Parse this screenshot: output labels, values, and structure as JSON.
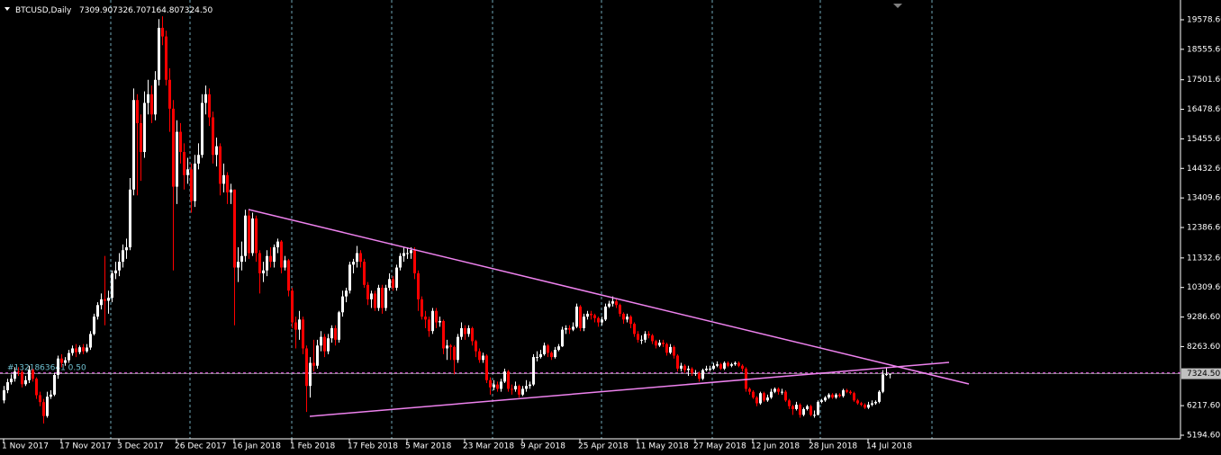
{
  "header": {
    "symbol": "BTCUSD,Daily",
    "ohlc": [
      "7309.90",
      "7326.70",
      "7164.80",
      "7324.50"
    ]
  },
  "chart_data": {
    "type": "candlestick",
    "categories": [
      "1 Nov 2017",
      null,
      null,
      null,
      null,
      null,
      null,
      null,
      null,
      null,
      null,
      null,
      null,
      null,
      null,
      null,
      "17 Nov 2017",
      null,
      null,
      null,
      null,
      null,
      null,
      null,
      null,
      null,
      null,
      null,
      null,
      null,
      null,
      null,
      "3 Dec 2017",
      null,
      null,
      null,
      null,
      null,
      null,
      null,
      null,
      null,
      null,
      null,
      null,
      null,
      null,
      null,
      "26 Dec 2017",
      null,
      null,
      null,
      null,
      null,
      null,
      null,
      null,
      null,
      null,
      null,
      null,
      null,
      null,
      null,
      "16 Jan 2018",
      null,
      null,
      null,
      null,
      null,
      null,
      null,
      null,
      null,
      null,
      null,
      null,
      null,
      null,
      null,
      "1 Feb 2018",
      null,
      null,
      null,
      null,
      null,
      null,
      null,
      null,
      null,
      null,
      null,
      null,
      null,
      null,
      null,
      "17 Feb 2018",
      null,
      null,
      null,
      null,
      null,
      null,
      null,
      null,
      null,
      null,
      null,
      null,
      null,
      null,
      null,
      "5 Mar 2018",
      null,
      null,
      null,
      null,
      null,
      null,
      null,
      null,
      null,
      null,
      null,
      null,
      null,
      null,
      null,
      "23 Mar 2018",
      null,
      null,
      null,
      null,
      null,
      null,
      null,
      null,
      null,
      null,
      null,
      null,
      null,
      null,
      null,
      "9 Apr 2018",
      null,
      null,
      null,
      null,
      null,
      null,
      null,
      null,
      null,
      null,
      null,
      null,
      null,
      null,
      null,
      "25 Apr 2018",
      null,
      null,
      null,
      null,
      null,
      null,
      null,
      null,
      null,
      null,
      null,
      null,
      null,
      null,
      null,
      "11 May 2018",
      null,
      null,
      null,
      null,
      null,
      null,
      null,
      null,
      null,
      null,
      null,
      null,
      null,
      null,
      null,
      "27 May 2018",
      null,
      null,
      null,
      null,
      null,
      null,
      null,
      null,
      null,
      null,
      null,
      null,
      null,
      null,
      null,
      "12 Jun 2018",
      null,
      null,
      null,
      null,
      null,
      null,
      null,
      null,
      null,
      null,
      null,
      null,
      null,
      null,
      null,
      "28 Jun 2018",
      null,
      null,
      null,
      null,
      null,
      null,
      null,
      null,
      null,
      null,
      null,
      null,
      null,
      null,
      null,
      "14 Jul 2018",
      null,
      null,
      null,
      null,
      null,
      null
    ],
    "open": [
      6400,
      6750,
      7030,
      7150,
      7400,
      7380,
      6960,
      7100,
      7450,
      7150,
      6580,
      6340,
      5860,
      6530,
      6600,
      7280,
      7850,
      7700,
      7790,
      8040,
      8200,
      8070,
      8240,
      8100,
      8230,
      8700,
      9300,
      9700,
      9900,
      9850,
      9950,
      10800,
      10900,
      11200,
      11600,
      11700,
      13700,
      16800,
      16000,
      15000,
      16700,
      17000,
      16300,
      17500,
      19300,
      19000,
      17500,
      16500,
      13800,
      15700,
      15000,
      14200,
      14400,
      13300,
      14600,
      14900,
      16700,
      17000,
      16200,
      14900,
      15200,
      13900,
      14200,
      13600,
      13700,
      11000,
      11200,
      11400,
      12800,
      11500,
      12700,
      11500,
      10800,
      10900,
      11400,
      11200,
      11700,
      11900,
      11000,
      11250,
      10200,
      9100,
      8850,
      9200,
      8200,
      6900,
      7700,
      7600,
      8300,
      8600,
      8100,
      8550,
      8900,
      8500,
      9450,
      10000,
      10200,
      11100,
      11200,
      11500,
      11200,
      10400,
      9900,
      10100,
      9600,
      10300,
      9600,
      10300,
      10600,
      10300,
      11000,
      11400,
      11500,
      11500,
      11600,
      10800,
      9900,
      9300,
      9200,
      8800,
      9500,
      9100,
      9150,
      8200,
      8300,
      8250,
      7800,
      8600,
      8900,
      8700,
      8900,
      8450,
      8100,
      7800,
      7950,
      7100,
      6850,
      6950,
      6800,
      7050,
      7400,
      6800,
      6780,
      6900,
      6600,
      6800,
      6900,
      6950,
      7900,
      7900,
      8000,
      8300,
      8050,
      7900,
      8150,
      8270,
      8850,
      8900,
      8850,
      8950,
      9650,
      8900,
      9300,
      9400,
      9350,
      9250,
      9100,
      9200,
      9650,
      9750,
      9830,
      9700,
      9400,
      9200,
      9300,
      9050,
      8700,
      8500,
      8500,
      8700,
      8650,
      8450,
      8300,
      8400,
      8350,
      8050,
      8250,
      7950,
      7500,
      7600,
      7450,
      7500,
      7350,
      7350,
      7150,
      7450,
      7500,
      7500,
      7600,
      7650,
      7500,
      7700,
      7600,
      7650,
      7700,
      7600,
      7500,
      6800,
      6700,
      6500,
      6300,
      6650,
      6400,
      6500,
      6700,
      6800,
      6700,
      6700,
      6400,
      6200,
      6100,
      6250,
      5900,
      6100,
      6200,
      5900,
      5900,
      6350,
      6400,
      6500,
      6600,
      6500,
      6600,
      6550,
      6750,
      6700,
      6650,
      6400,
      6300,
      6250,
      6150,
      6250,
      6300,
      6350,
      6700,
      7300,
      7309.9
    ],
    "high": [
      6900,
      7150,
      7300,
      7550,
      7550,
      7450,
      7250,
      7600,
      7500,
      7200,
      6700,
      6450,
      6700,
      6750,
      7350,
      7950,
      8000,
      7900,
      8150,
      8300,
      8350,
      8300,
      8350,
      8350,
      8800,
      9400,
      9800,
      10100,
      11400,
      10200,
      10900,
      11200,
      11500,
      11800,
      12000,
      14100,
      17200,
      17000,
      16300,
      17100,
      17500,
      17300,
      17800,
      19600,
      19700,
      19200,
      17900,
      16800,
      16100,
      16000,
      15300,
      14800,
      14600,
      14900,
      15300,
      17000,
      17300,
      17200,
      16400,
      15500,
      15300,
      14600,
      14300,
      13900,
      13700,
      11700,
      11900,
      13000,
      13000,
      12900,
      12800,
      11600,
      11200,
      11600,
      11700,
      11800,
      12000,
      11950,
      11400,
      11300,
      10300,
      9300,
      9500,
      9300,
      8300,
      7900,
      8500,
      8500,
      8800,
      8700,
      8700,
      9000,
      9000,
      9500,
      10200,
      10300,
      11200,
      11300,
      11750,
      11600,
      11300,
      10500,
      10200,
      10200,
      10400,
      10400,
      10400,
      10800,
      10700,
      11100,
      11500,
      11700,
      11700,
      11700,
      11700,
      10900,
      10000,
      9500,
      9300,
      9600,
      9600,
      9300,
      9200,
      8500,
      8350,
      8300,
      8700,
      9100,
      9000,
      9000,
      8950,
      8500,
      8200,
      8050,
      8000,
      7200,
      7100,
      7050,
      7150,
      7500,
      7450,
      6950,
      7050,
      6950,
      6900,
      7100,
      7050,
      8000,
      8100,
      8150,
      8400,
      8350,
      8100,
      8250,
      8350,
      8950,
      9000,
      9000,
      9100,
      9750,
      9700,
      9400,
      9500,
      9500,
      9400,
      9300,
      9300,
      9750,
      9850,
      10000,
      9900,
      9750,
      9450,
      9400,
      9350,
      9100,
      8800,
      8650,
      8800,
      8800,
      8700,
      8500,
      8500,
      8500,
      8400,
      8350,
      8300,
      8000,
      7700,
      7650,
      7600,
      7550,
      7450,
      7400,
      7500,
      7600,
      7600,
      7700,
      7750,
      7700,
      7750,
      7750,
      7700,
      7750,
      7750,
      7650,
      7550,
      6850,
      6750,
      6550,
      6700,
      6700,
      6600,
      6800,
      6850,
      6850,
      6800,
      6750,
      6450,
      6250,
      6350,
      6300,
      6150,
      6250,
      6250,
      6050,
      6400,
      6450,
      6550,
      6650,
      6650,
      6650,
      6650,
      6800,
      6800,
      6750,
      6700,
      6450,
      6350,
      6300,
      6350,
      6400,
      6400,
      6750,
      7450,
      7550,
      7326.7
    ],
    "low": [
      6300,
      6650,
      6950,
      7050,
      7250,
      6850,
      6900,
      7000,
      7050,
      6450,
      6200,
      5600,
      5800,
      6450,
      6550,
      7150,
      7550,
      7600,
      7700,
      7950,
      7900,
      8000,
      8000,
      8050,
      8150,
      8650,
      9200,
      9550,
      9000,
      9400,
      9800,
      10600,
      10700,
      11000,
      11300,
      11600,
      13500,
      13500,
      14000,
      14800,
      16300,
      16000,
      16100,
      17300,
      18700,
      17300,
      15700,
      10900,
      13200,
      14600,
      13700,
      13900,
      12900,
      13100,
      14400,
      14800,
      16300,
      15900,
      14600,
      14500,
      13500,
      13600,
      13200,
      13200,
      9000,
      10500,
      10900,
      11200,
      11300,
      11400,
      11200,
      10100,
      10500,
      10700,
      11000,
      11000,
      11500,
      10800,
      10900,
      10000,
      8900,
      8200,
      8500,
      8000,
      6000,
      6500,
      7400,
      7500,
      8100,
      7900,
      8000,
      8400,
      8300,
      8400,
      9300,
      9800,
      10100,
      10800,
      11000,
      11000,
      10300,
      9700,
      9600,
      9500,
      9500,
      9400,
      9500,
      10200,
      10200,
      10200,
      10900,
      11200,
      11300,
      11300,
      10600,
      9500,
      9200,
      8900,
      8600,
      8700,
      8900,
      8950,
      8000,
      7800,
      7800,
      7300,
      7700,
      8500,
      8500,
      8600,
      8300,
      7900,
      7700,
      7700,
      7000,
      6600,
      6750,
      6700,
      6700,
      7000,
      6700,
      6600,
      6700,
      6500,
      6550,
      6700,
      6800,
      6900,
      7750,
      7850,
      7950,
      7900,
      7800,
      7850,
      8100,
      8250,
      8700,
      8700,
      8800,
      8900,
      8800,
      8800,
      9200,
      9200,
      9100,
      8950,
      9000,
      9150,
      9600,
      9650,
      9600,
      9300,
      9050,
      9100,
      8900,
      8600,
      8400,
      8350,
      8400,
      8550,
      8350,
      8200,
      8250,
      8250,
      7950,
      8000,
      7850,
      7400,
      7400,
      7350,
      7250,
      7250,
      7250,
      7050,
      7100,
      7400,
      7400,
      7450,
      7550,
      7450,
      7450,
      7550,
      7550,
      7600,
      7550,
      7400,
      6700,
      6600,
      6450,
      6200,
      6250,
      6350,
      6350,
      6450,
      6650,
      6600,
      6600,
      6350,
      6100,
      5900,
      6050,
      5800,
      5850,
      6050,
      5850,
      5800,
      5880,
      6300,
      6350,
      6450,
      6450,
      6450,
      6500,
      6500,
      6650,
      6600,
      6350,
      6250,
      6200,
      6100,
      6100,
      6200,
      6250,
      6300,
      6650,
      7250,
      7164.8
    ],
    "close": [
      6750,
      7030,
      7150,
      7400,
      7380,
      6960,
      7100,
      7450,
      7150,
      6580,
      6340,
      5860,
      6530,
      6600,
      7280,
      7850,
      7700,
      7790,
      8040,
      8200,
      8070,
      8240,
      8100,
      8230,
      8700,
      9300,
      9700,
      9900,
      9850,
      9950,
      10800,
      10900,
      11200,
      11600,
      11700,
      13700,
      16800,
      16000,
      15000,
      16700,
      17000,
      16300,
      17500,
      19300,
      19000,
      17500,
      16500,
      13800,
      15700,
      15000,
      14200,
      14400,
      13300,
      14600,
      14900,
      16700,
      17000,
      16200,
      14900,
      15200,
      13900,
      14200,
      13600,
      13700,
      11000,
      11200,
      11400,
      12800,
      11500,
      12700,
      11500,
      10800,
      10900,
      11400,
      11200,
      11700,
      11900,
      11000,
      11250,
      10200,
      9100,
      8850,
      9200,
      8200,
      6900,
      7700,
      7600,
      8300,
      8600,
      8100,
      8550,
      8900,
      8500,
      9450,
      10000,
      10200,
      11100,
      11200,
      11500,
      11200,
      10400,
      9900,
      10100,
      9600,
      10300,
      9600,
      10300,
      10600,
      10300,
      11000,
      11400,
      11500,
      11500,
      11600,
      10800,
      9900,
      9300,
      9200,
      8800,
      9500,
      9100,
      9150,
      8200,
      8300,
      8250,
      7800,
      8600,
      8900,
      8700,
      8900,
      8450,
      8100,
      7800,
      7950,
      7100,
      6850,
      6950,
      6800,
      7050,
      7400,
      6800,
      6780,
      6900,
      6600,
      6800,
      6900,
      6950,
      7900,
      7900,
      8000,
      8300,
      8050,
      7900,
      8150,
      8270,
      8850,
      8900,
      8850,
      8950,
      9650,
      8900,
      9300,
      9400,
      9350,
      9250,
      9100,
      9200,
      9650,
      9750,
      9830,
      9700,
      9400,
      9200,
      9300,
      9050,
      8700,
      8500,
      8500,
      8700,
      8650,
      8450,
      8300,
      8400,
      8350,
      8050,
      8250,
      7950,
      7500,
      7600,
      7450,
      7500,
      7350,
      7350,
      7150,
      7450,
      7500,
      7500,
      7600,
      7650,
      7500,
      7700,
      7600,
      7650,
      7700,
      7600,
      7500,
      6800,
      6700,
      6500,
      6300,
      6650,
      6400,
      6500,
      6700,
      6800,
      6700,
      6700,
      6400,
      6200,
      6100,
      6250,
      5900,
      6100,
      6200,
      5900,
      5900,
      6350,
      6400,
      6500,
      6600,
      6500,
      6600,
      6550,
      6750,
      6700,
      6650,
      6400,
      6300,
      6250,
      6150,
      6250,
      6300,
      6350,
      6700,
      7300,
      7310,
      7324.5
    ],
    "up_color": "#ffffff",
    "down_color": "#ff0000",
    "ylim": [
      5070,
      20263
    ],
    "yticks": [
      {
        "value": 19578.6,
        "label": "19578.60"
      },
      {
        "value": 18555.6,
        "label": "18555.60"
      },
      {
        "value": 17501.6,
        "label": "17501.60"
      },
      {
        "value": 16478.6,
        "label": "16478.60"
      },
      {
        "value": 15455.6,
        "label": "15455.60"
      },
      {
        "value": 14432.6,
        "label": "14432.60"
      },
      {
        "value": 13409.6,
        "label": "13409.60"
      },
      {
        "value": 12386.6,
        "label": "12386.60"
      },
      {
        "value": 11332.6,
        "label": "11332.60"
      },
      {
        "value": 10309.6,
        "label": "10309.60"
      },
      {
        "value": 9286.6,
        "label": "9286.60"
      },
      {
        "value": 8263.6,
        "label": "8263.60"
      },
      {
        "value": 6217.6,
        "label": "6217.60"
      },
      {
        "value": 5194.6,
        "label": "5194.60"
      }
    ],
    "price_line": {
      "value": 7324.5,
      "label": "7324.50",
      "color": "#c0c0c0"
    },
    "order_line": {
      "value": 7350,
      "label": "#1321863641 0.50",
      "color": "#ff66ff"
    },
    "trendlines": [
      {
        "x": [
          68,
          268
        ],
        "y": [
          13009,
          6969
        ],
        "color": "#ee82ee"
      },
      {
        "x": [
          85,
          262.5
        ],
        "y": [
          5848,
          7716
        ],
        "color": "#ee82ee"
      }
    ]
  }
}
